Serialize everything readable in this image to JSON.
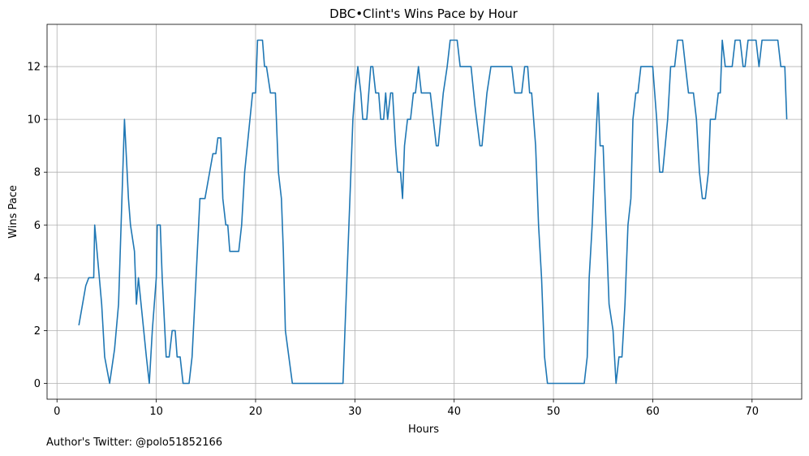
{
  "footnote": "Author's Twitter: @polo51852166",
  "chart_data": {
    "type": "line",
    "title": "DBC•Clint's Wins Pace by Hour",
    "xlabel": "Hours",
    "ylabel": "Wins Pace",
    "xlim": [
      -1,
      75
    ],
    "ylim": [
      -0.6,
      13.6
    ],
    "xticks": [
      0,
      10,
      20,
      30,
      40,
      50,
      60,
      70
    ],
    "yticks": [
      0,
      2,
      4,
      6,
      8,
      10,
      12
    ],
    "grid": true,
    "series": [
      {
        "color": "#1f77b4",
        "points": [
          [
            2.2,
            2.2
          ],
          [
            2.9,
            3.7
          ],
          [
            3.2,
            4
          ],
          [
            3.7,
            4
          ],
          [
            3.8,
            6
          ],
          [
            4.5,
            3
          ],
          [
            4.8,
            1
          ],
          [
            5.3,
            0
          ],
          [
            5.8,
            1.3
          ],
          [
            6.2,
            3
          ],
          [
            6.8,
            10
          ],
          [
            7.2,
            7
          ],
          [
            7.4,
            6
          ],
          [
            7.8,
            5
          ],
          [
            8.0,
            3
          ],
          [
            8.2,
            4
          ],
          [
            9.0,
            1
          ],
          [
            9.3,
            0
          ],
          [
            9.6,
            2
          ],
          [
            10.0,
            4
          ],
          [
            10.1,
            6
          ],
          [
            10.4,
            6
          ],
          [
            10.6,
            4
          ],
          [
            11.0,
            1
          ],
          [
            11.3,
            1
          ],
          [
            11.6,
            2
          ],
          [
            11.9,
            2
          ],
          [
            12.1,
            1
          ],
          [
            12.4,
            1
          ],
          [
            12.7,
            0
          ],
          [
            13.3,
            0
          ],
          [
            13.6,
            1
          ],
          [
            14.0,
            4
          ],
          [
            14.4,
            7
          ],
          [
            14.9,
            7
          ],
          [
            15.7,
            8.7
          ],
          [
            16.0,
            8.7
          ],
          [
            16.2,
            9.3
          ],
          [
            16.5,
            9.3
          ],
          [
            16.7,
            7
          ],
          [
            17.0,
            6
          ],
          [
            17.2,
            6
          ],
          [
            17.4,
            5
          ],
          [
            18.3,
            5
          ],
          [
            18.6,
            6
          ],
          [
            18.9,
            8
          ],
          [
            19.7,
            11
          ],
          [
            20.0,
            11
          ],
          [
            20.2,
            13
          ],
          [
            20.7,
            13
          ],
          [
            20.9,
            12
          ],
          [
            21.1,
            12
          ],
          [
            21.5,
            11
          ],
          [
            22.0,
            11
          ],
          [
            22.3,
            8
          ],
          [
            22.6,
            7
          ],
          [
            22.8,
            5
          ],
          [
            23.0,
            2
          ],
          [
            23.7,
            0
          ],
          [
            28.8,
            0
          ],
          [
            29.0,
            2
          ],
          [
            29.8,
            10
          ],
          [
            30.0,
            11
          ],
          [
            30.3,
            12
          ],
          [
            30.6,
            11
          ],
          [
            30.8,
            10
          ],
          [
            31.2,
            10
          ],
          [
            31.6,
            12
          ],
          [
            31.8,
            12
          ],
          [
            32.1,
            11
          ],
          [
            32.4,
            11
          ],
          [
            32.6,
            10
          ],
          [
            32.9,
            10
          ],
          [
            33.1,
            11
          ],
          [
            33.3,
            10
          ],
          [
            33.6,
            11
          ],
          [
            33.8,
            11
          ],
          [
            34.1,
            9
          ],
          [
            34.3,
            8
          ],
          [
            34.6,
            8
          ],
          [
            34.8,
            7
          ],
          [
            35.0,
            9
          ],
          [
            35.3,
            10
          ],
          [
            35.6,
            10
          ],
          [
            35.9,
            11
          ],
          [
            36.1,
            11
          ],
          [
            36.4,
            12
          ],
          [
            36.7,
            11
          ],
          [
            37.6,
            11
          ],
          [
            37.9,
            10
          ],
          [
            38.2,
            9
          ],
          [
            38.4,
            9
          ],
          [
            38.9,
            11
          ],
          [
            39.3,
            12
          ],
          [
            39.6,
            13
          ],
          [
            40.3,
            13
          ],
          [
            40.6,
            12
          ],
          [
            41.7,
            12
          ],
          [
            42.1,
            10.5
          ],
          [
            42.6,
            9
          ],
          [
            42.8,
            9
          ],
          [
            43.3,
            11
          ],
          [
            43.7,
            12
          ],
          [
            45.8,
            12
          ],
          [
            46.1,
            11
          ],
          [
            46.8,
            11
          ],
          [
            47.1,
            12
          ],
          [
            47.4,
            12
          ],
          [
            47.6,
            11
          ],
          [
            47.8,
            11
          ],
          [
            48.2,
            9
          ],
          [
            48.5,
            6
          ],
          [
            48.8,
            4
          ],
          [
            49.1,
            1
          ],
          [
            49.4,
            0
          ],
          [
            53.1,
            0
          ],
          [
            53.4,
            1
          ],
          [
            53.6,
            4
          ],
          [
            53.9,
            6
          ],
          [
            54.3,
            9.5
          ],
          [
            54.5,
            11
          ],
          [
            54.7,
            9
          ],
          [
            55.0,
            9
          ],
          [
            55.3,
            6
          ],
          [
            55.6,
            3
          ],
          [
            56.0,
            2
          ],
          [
            56.3,
            0
          ],
          [
            56.6,
            1
          ],
          [
            56.9,
            1
          ],
          [
            57.2,
            3
          ],
          [
            57.5,
            6
          ],
          [
            57.8,
            7
          ],
          [
            58.0,
            10
          ],
          [
            58.3,
            11
          ],
          [
            58.5,
            11
          ],
          [
            58.8,
            12
          ],
          [
            60.0,
            12
          ],
          [
            60.4,
            10
          ],
          [
            60.7,
            8
          ],
          [
            61.0,
            8
          ],
          [
            61.5,
            10
          ],
          [
            61.8,
            12
          ],
          [
            62.2,
            12
          ],
          [
            62.5,
            13
          ],
          [
            63.0,
            13
          ],
          [
            63.3,
            12
          ],
          [
            63.6,
            11
          ],
          [
            64.1,
            11
          ],
          [
            64.4,
            10
          ],
          [
            64.7,
            8
          ],
          [
            65.0,
            7
          ],
          [
            65.3,
            7
          ],
          [
            65.6,
            8
          ],
          [
            65.8,
            10
          ],
          [
            66.3,
            10
          ],
          [
            66.6,
            11
          ],
          [
            66.8,
            11
          ],
          [
            67.0,
            13
          ],
          [
            67.3,
            12
          ],
          [
            68.0,
            12
          ],
          [
            68.3,
            13
          ],
          [
            68.8,
            13
          ],
          [
            69.1,
            12
          ],
          [
            69.3,
            12
          ],
          [
            69.6,
            13
          ],
          [
            70.4,
            13
          ],
          [
            70.7,
            12
          ],
          [
            71.0,
            13
          ],
          [
            72.0,
            13
          ],
          [
            72.6,
            13
          ],
          [
            72.9,
            12
          ],
          [
            73.3,
            12
          ],
          [
            73.5,
            10
          ]
        ]
      }
    ]
  }
}
